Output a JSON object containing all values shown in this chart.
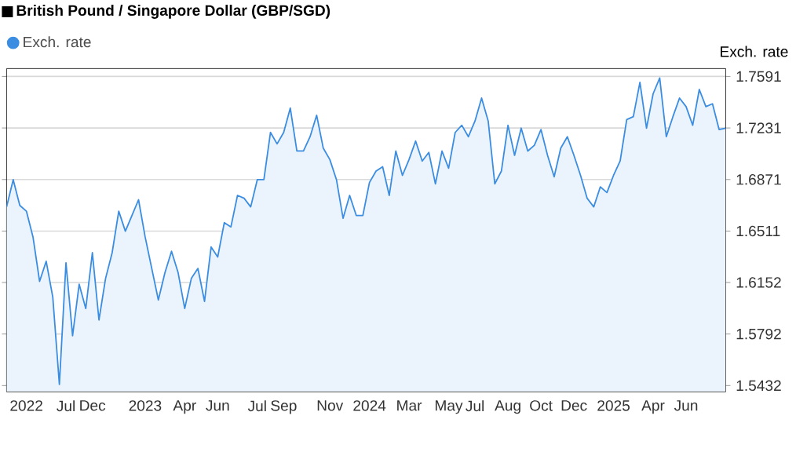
{
  "chart_data": {
    "type": "area",
    "title": "British Pound / Singapore Dollar (GBP/SGD)",
    "ylabel": "Exch. rate",
    "legend": "top left",
    "grid": "y",
    "ylim": [
      1.5388,
      1.7646
    ],
    "yticks": [
      1.5432,
      1.5792,
      1.6152,
      1.6511,
      1.6871,
      1.7231,
      1.7591
    ],
    "categories": [
      null,
      null,
      null,
      "2022",
      null,
      null,
      null,
      null,
      null,
      "Jul",
      null,
      null,
      null,
      "Dec",
      null,
      null,
      null,
      null,
      null,
      null,
      null,
      "2023",
      null,
      null,
      null,
      null,
      null,
      "Apr",
      null,
      null,
      null,
      null,
      "Jun",
      null,
      null,
      null,
      null,
      null,
      "Jul",
      null,
      null,
      null,
      "Sep",
      null,
      null,
      null,
      null,
      null,
      null,
      "Nov",
      null,
      null,
      null,
      null,
      null,
      "2024",
      null,
      null,
      null,
      null,
      null,
      "Mar",
      null,
      null,
      null,
      null,
      null,
      "May",
      null,
      null,
      null,
      "Jul",
      null,
      null,
      null,
      null,
      "Aug",
      null,
      null,
      null,
      null,
      "Oct",
      null,
      null,
      null,
      null,
      "Dec",
      null,
      null,
      null,
      null,
      null,
      "2025",
      null,
      null,
      null,
      null,
      null,
      "Apr",
      null,
      null,
      null,
      null,
      "Jun",
      null,
      null,
      null,
      null,
      null,
      null
    ],
    "series": [
      {
        "name": "Exch. rate",
        "color": "#3b8de2",
        "values": [
          1.668,
          1.687,
          1.669,
          1.665,
          1.647,
          1.616,
          1.63,
          1.605,
          1.544,
          1.629,
          1.578,
          1.614,
          1.597,
          1.636,
          1.589,
          1.618,
          1.636,
          1.665,
          1.651,
          1.662,
          1.673,
          1.647,
          1.625,
          1.603,
          1.622,
          1.637,
          1.622,
          1.597,
          1.618,
          1.625,
          1.602,
          1.64,
          1.633,
          1.657,
          1.654,
          1.676,
          1.674,
          1.668,
          1.687,
          1.687,
          1.72,
          1.712,
          1.72,
          1.737,
          1.707,
          1.707,
          1.717,
          1.732,
          1.709,
          1.701,
          1.687,
          1.66,
          1.676,
          1.662,
          1.662,
          1.685,
          1.693,
          1.696,
          1.676,
          1.707,
          1.69,
          1.701,
          1.714,
          1.7,
          1.706,
          1.684,
          1.707,
          1.695,
          1.72,
          1.725,
          1.717,
          1.728,
          1.744,
          1.728,
          1.684,
          1.693,
          1.725,
          1.704,
          1.723,
          1.707,
          1.711,
          1.722,
          1.704,
          1.689,
          1.709,
          1.717,
          1.704,
          1.69,
          1.674,
          1.668,
          1.682,
          1.678,
          1.69,
          1.7,
          1.729,
          1.731,
          1.755,
          1.723,
          1.747,
          1.758,
          1.717,
          1.731,
          1.744,
          1.738,
          1.725,
          1.75,
          1.738,
          1.74,
          1.722,
          1.723
        ]
      }
    ]
  }
}
